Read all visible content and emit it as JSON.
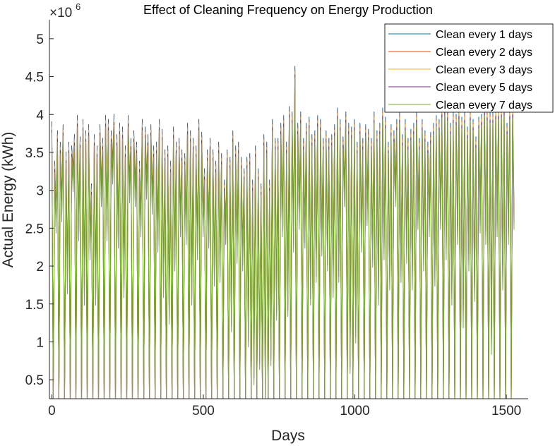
{
  "chart_data": {
    "type": "line",
    "title": "Effect of Cleaning Frequency on Energy Production",
    "xlabel": "Days",
    "ylabel": "Actual Energy (kWh)",
    "y_exponent_base": "×10",
    "y_exponent_power": "6",
    "xlim": [
      -8,
      1572
    ],
    "ylim": [
      0.25,
      5.25
    ],
    "xticks": [
      0,
      500,
      1000,
      1500
    ],
    "xtick_labels": [
      "0",
      "500",
      "1000",
      "1500"
    ],
    "yticks": [
      0.5,
      1,
      1.5,
      2,
      2.5,
      3,
      3.5,
      4,
      4.5,
      5
    ],
    "ytick_labels": [
      "0.5",
      "1",
      "1.5",
      "2",
      "2.5",
      "3",
      "3.5",
      "4",
      "4.5",
      "5"
    ],
    "legend_position": "top-right",
    "period_days": 9.33,
    "x_range": [
      0,
      1530
    ],
    "series": [
      {
        "name": "Clean every 1 days",
        "color": "#0072BD"
      },
      {
        "name": "Clean every 2 days",
        "color": "#D95319"
      },
      {
        "name": "Clean every 3 days",
        "color": "#EDB120"
      },
      {
        "name": "Clean every 5 days",
        "color": "#7E2F8E"
      },
      {
        "name": "Clean every 7 days",
        "color": "#77AC30"
      }
    ],
    "cycle_peaks": [
      3.82,
      3.3,
      3.7,
      3.55,
      3.78,
      3.42,
      3.55,
      3.5,
      3.65,
      3.9,
      3.62,
      3.85,
      3.7,
      3.78,
      3.0,
      3.65,
      3.5,
      3.78,
      3.6,
      3.9,
      3.85,
      3.7,
      3.92,
      3.65,
      3.8,
      3.75,
      3.5,
      3.9,
      3.6,
      3.7,
      3.55,
      3.3,
      3.85,
      3.75,
      3.65,
      3.78,
      3.5,
      3.55,
      3.85,
      3.72,
      3.45,
      3.5,
      3.3,
      3.75,
      3.55,
      3.6,
      3.45,
      3.4,
      3.8,
      3.7,
      3.6,
      3.5,
      3.85,
      3.68,
      3.2,
      3.45,
      3.6,
      3.45,
      3.3,
      3.55,
      3.4,
      3.05,
      3.45,
      3.35,
      3.7,
      3.5,
      3.55,
      3.35,
      3.2,
      3.35,
      3.4,
      3.05,
      3.5,
      3.2,
      3.0,
      3.65,
      3.55,
      3.05,
      3.85,
      3.6,
      3.6,
      3.8,
      3.9,
      3.55,
      4.02,
      3.95,
      4.55,
      3.8,
      3.95,
      3.6,
      3.8,
      3.88,
      3.65,
      3.7,
      3.9,
      3.85,
      3.6,
      3.7,
      3.6,
      3.65,
      3.78,
      4.0,
      3.85,
      3.62,
      3.95,
      3.8,
      3.75,
      3.85,
      3.55,
      3.8,
      3.6,
      3.78,
      3.72,
      3.6,
      3.95,
      3.7,
      3.8,
      4.0,
      3.88,
      3.55,
      3.78,
      3.7,
      3.85,
      3.95,
      3.65,
      3.85,
      3.6,
      3.72,
      3.8,
      3.95,
      3.6,
      3.85,
      3.7,
      3.55,
      3.68,
      3.8,
      3.9,
      3.85,
      4.02,
      4.05,
      3.98,
      3.8,
      3.95,
      3.92,
      4.0,
      3.88,
      3.95,
      3.75,
      3.98,
      3.85,
      3.62,
      3.88,
      3.92,
      4.05,
      3.98,
      3.95,
      3.95,
      4.0,
      4.0,
      4.02,
      4.05,
      3.8,
      4.0,
      4.02,
      3.95,
      4.05,
      3.95
    ],
    "cycle_troughs": [
      0.2,
      2.55,
      0.2,
      2.7,
      0.2,
      1.75,
      0.2,
      3.1,
      0.2,
      2.45,
      0.2,
      1.6,
      0.2,
      2.2,
      0.2,
      1.6,
      0.2,
      2.9,
      0.2,
      2.45,
      0.2,
      3.2,
      0.2,
      2.35,
      0.2,
      1.7,
      0.2,
      2.95,
      0.2,
      2.9,
      0.2,
      2.5,
      0.2,
      3.0,
      0.2,
      2.8,
      0.2,
      2.3,
      0.2,
      1.7,
      0.2,
      1.35,
      0.2,
      2.05,
      0.2,
      2.5,
      0.2,
      2.4,
      0.2,
      1.6,
      0.2,
      2.2,
      0.2,
      2.5,
      0.2,
      2.35,
      0.2,
      1.85,
      0.2,
      1.9,
      0.2,
      2.4,
      0.2,
      1.25,
      0.2,
      2.15,
      0.2,
      2.05,
      0.2,
      1.05,
      0.2,
      0.55,
      0.2,
      0.75,
      0.2,
      0.3,
      0.2,
      0.8,
      0.2,
      1.4,
      0.2,
      2.5,
      0.2,
      1.45,
      0.2,
      2.3,
      0.2,
      2.6,
      0.2,
      2.35,
      0.2,
      1.6,
      0.2,
      1.9,
      0.2,
      2.25,
      0.2,
      2.05,
      0.2,
      1.7,
      0.2,
      1.9,
      0.2,
      2.9,
      0.2,
      0.7,
      0.2,
      1.1,
      0.2,
      2.3,
      0.2,
      2.65,
      0.2,
      2.1,
      0.2,
      1.6,
      0.2,
      2.2,
      0.2,
      1.8,
      0.2,
      2.9,
      0.2,
      1.9,
      0.2,
      2.15,
      0.2,
      1.8,
      0.2,
      2.6,
      0.2,
      2.05,
      0.2,
      2.5,
      0.2,
      1.85,
      0.2,
      2.6,
      0.2,
      2.2,
      0.2,
      1.6,
      0.2,
      2.4,
      0.2,
      1.3,
      0.2,
      2.05,
      0.2,
      1.65,
      0.2,
      2.55,
      0.2,
      2.4,
      0.2,
      0.95,
      0.2,
      2.5,
      0.2,
      1.8,
      0.2,
      2.4,
      0.2,
      2.6
    ]
  }
}
